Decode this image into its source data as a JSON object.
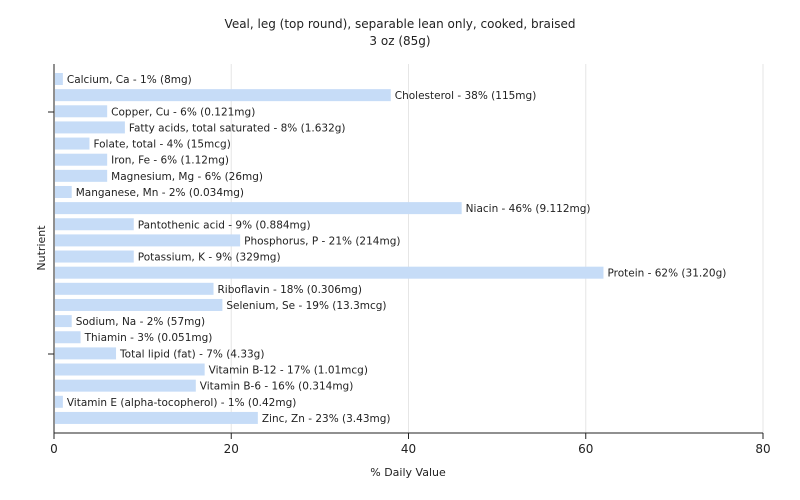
{
  "chart_data": {
    "type": "bar",
    "orientation": "horizontal",
    "title": "Veal, leg (top round), separable lean only, cooked, braised",
    "subtitle": "3 oz (85g)",
    "xlabel": "% Daily Value",
    "ylabel": "Nutrient",
    "xlim": [
      0,
      80
    ],
    "x_ticks": [
      0,
      20,
      40,
      60,
      80
    ],
    "grid": true,
    "bar_color": "#c6dcf7",
    "categories": [
      "Calcium, Ca - 1% (8mg)",
      "Cholesterol - 38% (115mg)",
      "Copper, Cu - 6% (0.121mg)",
      "Fatty acids, total saturated - 8% (1.632g)",
      "Folate, total - 4% (15mcg)",
      "Iron, Fe - 6% (1.12mg)",
      "Magnesium, Mg - 6% (26mg)",
      "Manganese, Mn - 2% (0.034mg)",
      "Niacin - 46% (9.112mg)",
      "Pantothenic acid - 9% (0.884mg)",
      "Phosphorus, P - 21% (214mg)",
      "Potassium, K - 9% (329mg)",
      "Protein - 62% (31.20g)",
      "Riboflavin - 18% (0.306mg)",
      "Selenium, Se - 19% (13.3mcg)",
      "Sodium, Na - 2% (57mg)",
      "Thiamin - 3% (0.051mg)",
      "Total lipid (fat) - 7% (4.33g)",
      "Vitamin B-12 - 17% (1.01mcg)",
      "Vitamin B-6 - 16% (0.314mg)",
      "Vitamin E (alpha-tocopherol) - 1% (0.42mg)",
      "Zinc, Zn - 23% (3.43mg)"
    ],
    "values": [
      1,
      38,
      6,
      8,
      4,
      6,
      6,
      2,
      46,
      9,
      21,
      9,
      62,
      18,
      19,
      2,
      3,
      7,
      17,
      16,
      1,
      23
    ]
  }
}
